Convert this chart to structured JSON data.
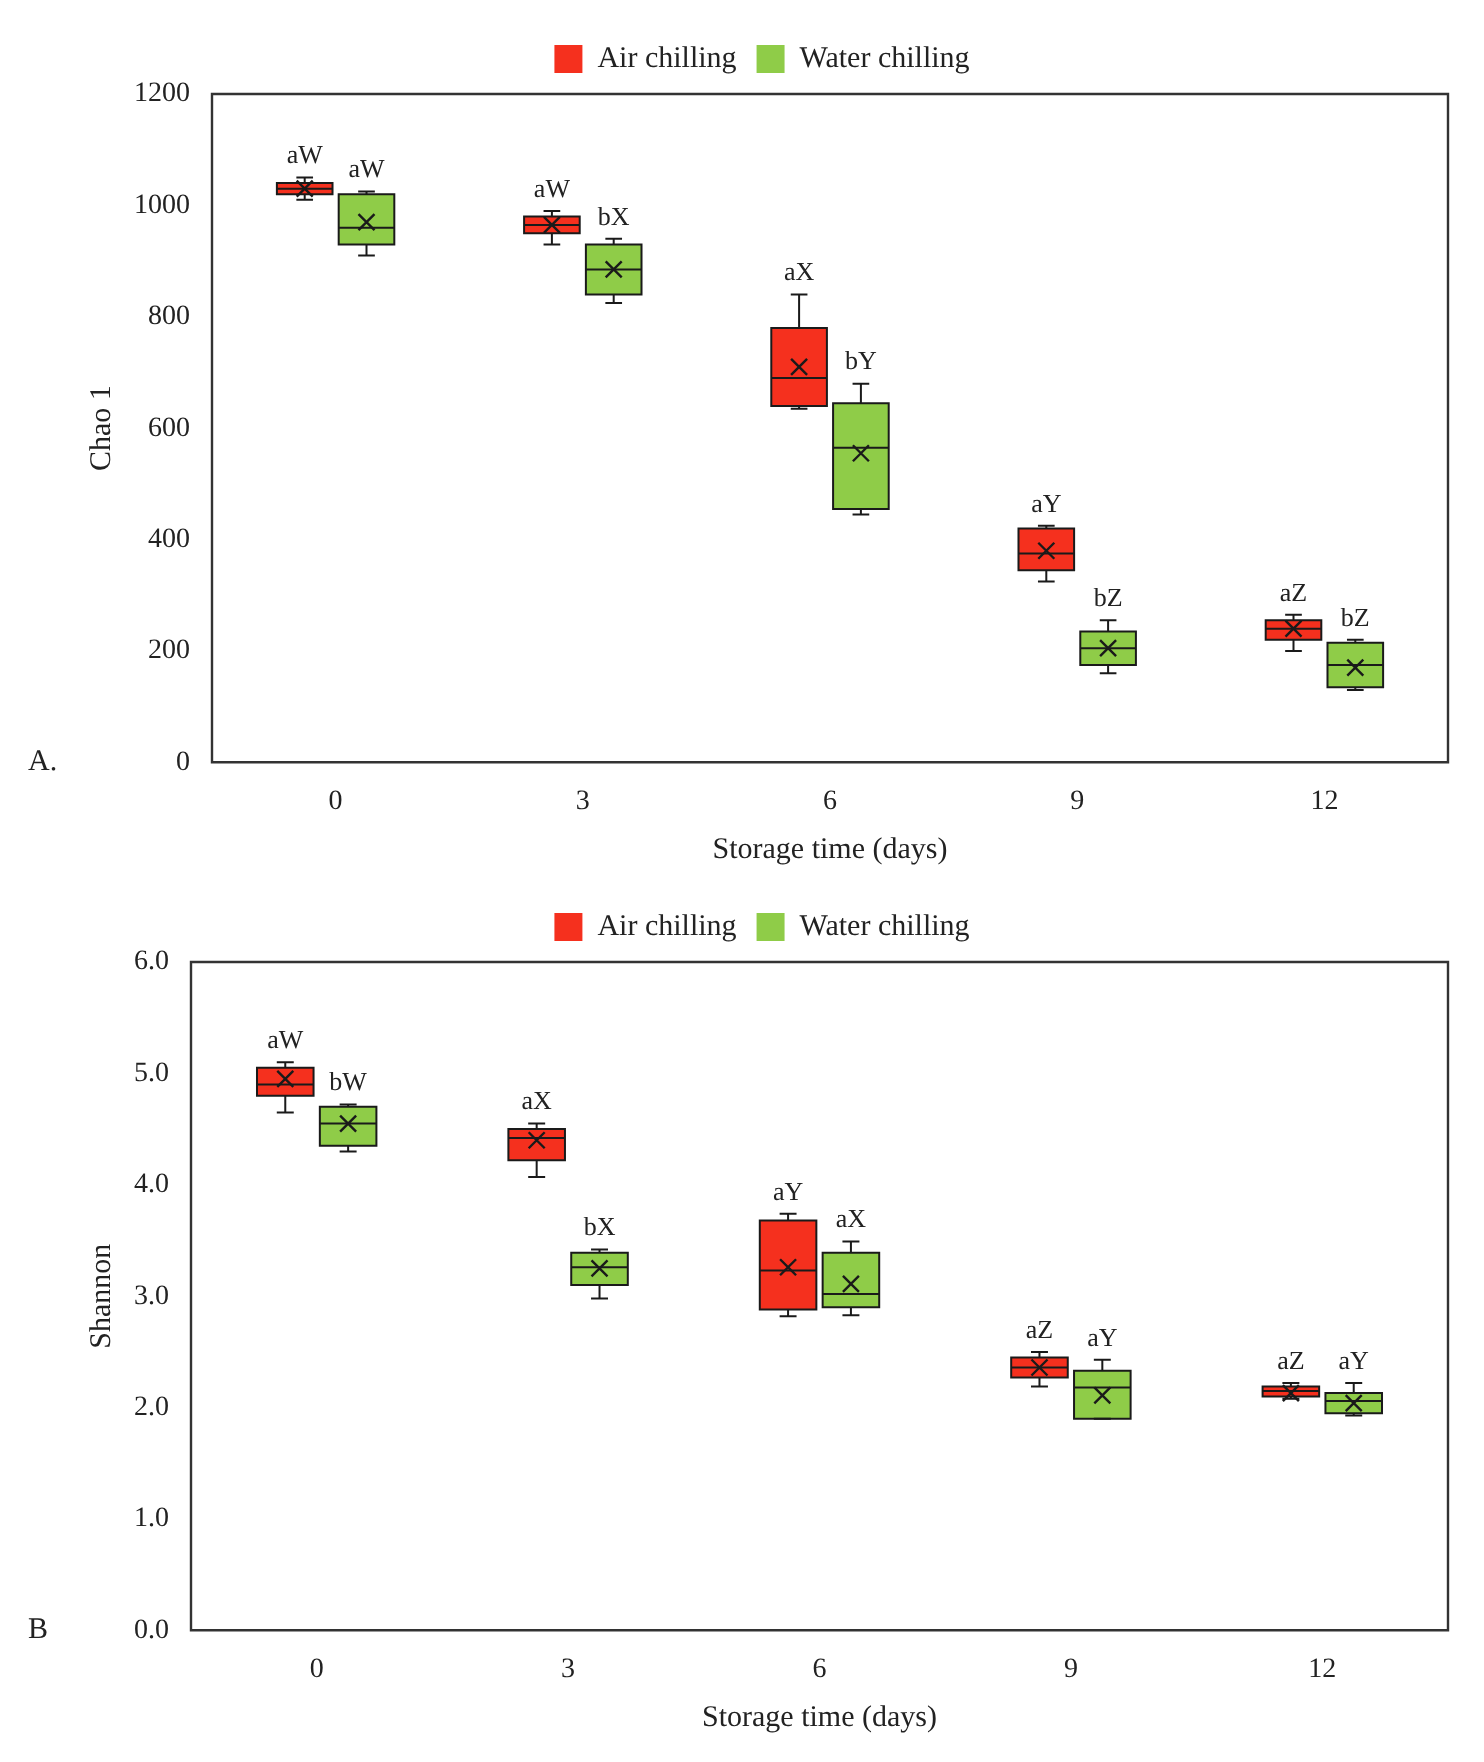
{
  "chart_data": [
    {
      "type": "box",
      "xlabel": "Storage time (days)",
      "ylabel": "Chao 1",
      "categories": [
        "0",
        "3",
        "6",
        "9",
        "12"
      ],
      "ylim": [
        0,
        1200
      ],
      "yticks": [
        0,
        200,
        400,
        600,
        800,
        1000,
        1200
      ],
      "legend": "top",
      "marker": "cross",
      "series": [
        {
          "name": "Air chilling",
          "color": "#f5301e",
          "boxes": [
            {
              "low": 1010,
              "q1": 1020,
              "median": 1030,
              "q3": 1040,
              "high": 1050,
              "mean": 1030
            },
            {
              "low": 930,
              "q1": 950,
              "median": 965,
              "q3": 980,
              "high": 990,
              "mean": 965
            },
            {
              "low": 635,
              "q1": 640,
              "median": 690,
              "q3": 780,
              "high": 840,
              "mean": 710
            },
            {
              "low": 325,
              "q1": 345,
              "median": 375,
              "q3": 420,
              "high": 425,
              "mean": 380
            },
            {
              "low": 200,
              "q1": 220,
              "median": 240,
              "q3": 255,
              "high": 265,
              "mean": 240
            }
          ]
        },
        {
          "name": "Water chilling",
          "color": "#8fcc48",
          "boxes": [
            {
              "low": 910,
              "q1": 930,
              "median": 960,
              "q3": 1020,
              "high": 1025,
              "mean": 970
            },
            {
              "low": 825,
              "q1": 840,
              "median": 885,
              "q3": 930,
              "high": 940,
              "mean": 885
            },
            {
              "low": 445,
              "q1": 455,
              "median": 565,
              "q3": 645,
              "high": 680,
              "mean": 555
            },
            {
              "low": 160,
              "q1": 175,
              "median": 205,
              "q3": 235,
              "high": 255,
              "mean": 205
            },
            {
              "low": 130,
              "q1": 135,
              "median": 175,
              "q3": 215,
              "high": 220,
              "mean": 170
            }
          ]
        }
      ],
      "annotations": [
        "A.",
        {
          "text": "aW",
          "x": "0",
          "y": 1050
        },
        {
          "text": "aW",
          "x": "0",
          "y": 1025
        },
        {
          "text": "aW",
          "x": "3",
          "y": 990
        },
        {
          "text": "bX",
          "x": "3",
          "y": 940
        },
        {
          "text": "aX",
          "x": "6",
          "y": 780
        },
        {
          "text": "bY",
          "x": "6",
          "y": 680
        },
        {
          "text": "aY",
          "x": "9",
          "y": 425
        },
        {
          "text": "bZ",
          "x": "9",
          "y": 235
        },
        {
          "text": "aZ",
          "x": "12",
          "y": 265
        },
        {
          "text": "bZ",
          "x": "12",
          "y": 220
        }
      ]
    },
    {
      "type": "box",
      "xlabel": "Storage time (days)",
      "ylabel": "Shannon",
      "categories": [
        "0",
        "3",
        "6",
        "9",
        "12"
      ],
      "ylim": [
        0,
        6
      ],
      "yticks": [
        {
          "value": 0,
          "label": "0.0"
        },
        {
          "value": 1,
          "label": "1.0"
        },
        {
          "value": 2,
          "label": "2.0"
        },
        {
          "value": 3,
          "label": "3.0"
        },
        {
          "value": 4,
          "label": "4.0"
        },
        {
          "value": 5,
          "label": "5.0"
        },
        {
          "value": 6,
          "label": "6.0"
        }
      ],
      "legend": "top",
      "marker": "cross",
      "series": [
        {
          "name": "Air chilling",
          "color": "#f5301e",
          "boxes": [
            {
              "low": 4.65,
              "q1": 4.8,
              "median": 4.9,
              "q3": 5.05,
              "high": 5.1,
              "mean": 4.95
            },
            {
              "low": 4.07,
              "q1": 4.22,
              "median": 4.42,
              "q3": 4.5,
              "high": 4.55,
              "mean": 4.4
            },
            {
              "low": 2.82,
              "q1": 2.88,
              "median": 3.23,
              "q3": 3.68,
              "high": 3.74,
              "mean": 3.26
            },
            {
              "low": 2.19,
              "q1": 2.27,
              "median": 2.36,
              "q3": 2.45,
              "high": 2.5,
              "mean": 2.36
            },
            {
              "low": 2.08,
              "q1": 2.1,
              "median": 2.15,
              "q3": 2.19,
              "high": 2.22,
              "mean": 2.13
            }
          ]
        },
        {
          "name": "Water chilling",
          "color": "#8fcc48",
          "boxes": [
            {
              "low": 4.3,
              "q1": 4.35,
              "median": 4.55,
              "q3": 4.7,
              "high": 4.72,
              "mean": 4.55
            },
            {
              "low": 2.98,
              "q1": 3.1,
              "median": 3.26,
              "q3": 3.39,
              "high": 3.42,
              "mean": 3.25
            },
            {
              "low": 2.83,
              "q1": 2.9,
              "median": 3.02,
              "q3": 3.39,
              "high": 3.49,
              "mean": 3.11
            },
            {
              "low": 1.9,
              "q1": 1.9,
              "median": 2.18,
              "q3": 2.33,
              "high": 2.43,
              "mean": 2.11
            },
            {
              "low": 1.93,
              "q1": 1.95,
              "median": 2.06,
              "q3": 2.13,
              "high": 2.22,
              "mean": 2.04
            }
          ]
        }
      ],
      "annotations": [
        "B",
        {
          "text": "aW",
          "x": "0",
          "y": 5.1
        },
        {
          "text": "bW",
          "x": "0",
          "y": 4.72
        },
        {
          "text": "aX",
          "x": "3",
          "y": 4.55
        },
        {
          "text": "bX",
          "x": "3",
          "y": 3.42
        },
        {
          "text": "aY",
          "x": "6",
          "y": 3.74
        },
        {
          "text": "aX",
          "x": "6",
          "y": 3.49
        },
        {
          "text": "aZ",
          "x": "9",
          "y": 2.5
        },
        {
          "text": "aY",
          "x": "9",
          "y": 2.43
        },
        {
          "text": "aZ",
          "x": "12",
          "y": 2.22
        },
        {
          "text": "aY",
          "x": "12",
          "y": 2.22
        }
      ]
    }
  ]
}
